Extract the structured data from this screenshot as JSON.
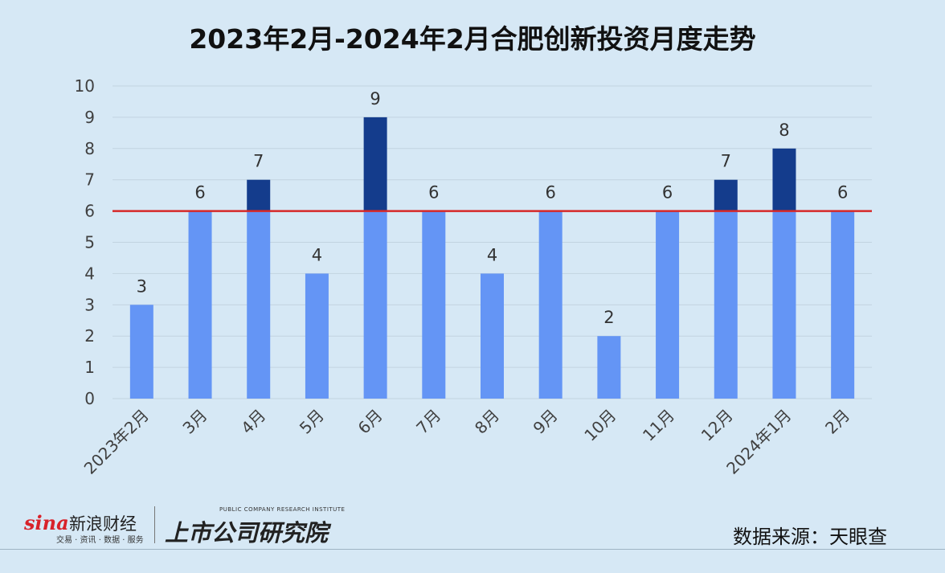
{
  "chart_data": {
    "type": "bar",
    "title": "2023年2月-2024年2月合肥创新投资月度走势",
    "categories": [
      "2023年2月",
      "3月",
      "4月",
      "5月",
      "6月",
      "7月",
      "8月",
      "9月",
      "10月",
      "11月",
      "12月",
      "2024年1月",
      "2月"
    ],
    "values": [
      3,
      6,
      7,
      4,
      9,
      6,
      4,
      6,
      2,
      6,
      7,
      8,
      6
    ],
    "ylim": [
      0,
      10
    ],
    "yticks": [
      "0",
      "1",
      "2",
      "3",
      "4",
      "5",
      "6",
      "7",
      "8",
      "9",
      "10"
    ],
    "reference_line": 6,
    "grid": true,
    "colors": {
      "base": "#6495f5",
      "above_reference": "#143c8c",
      "reference_line": "#d62828"
    }
  },
  "source": "数据来源：天眼查",
  "logos": {
    "sina_word": "sina",
    "sina_name": "新浪财经",
    "sina_tagline": "交易 · 资讯 · 数据 · 服务",
    "institute_en": "PUBLIC COMPANY RESEARCH INSTITUTE",
    "institute_cn": "上市公司研究院"
  }
}
